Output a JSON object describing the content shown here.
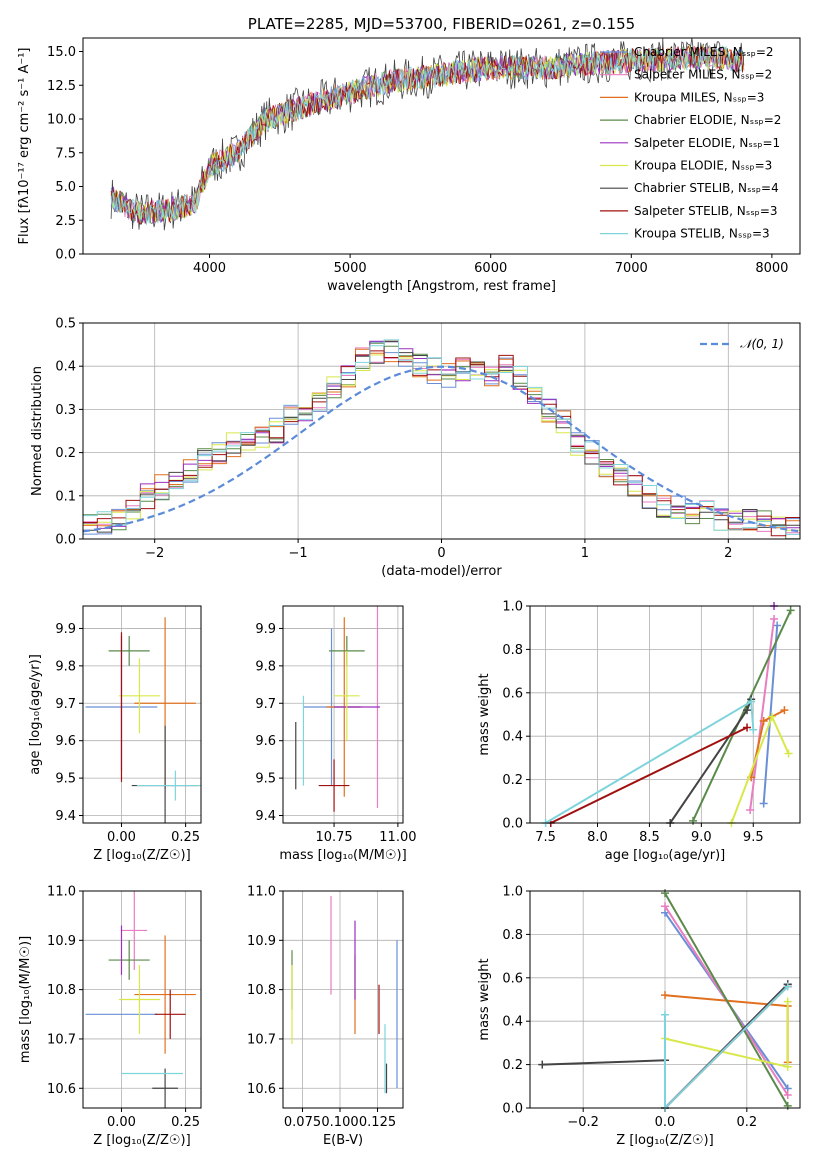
{
  "colors": [
    "#6a8fd6",
    "#e87dc0",
    "#e07020",
    "#5a8a4a",
    "#9b30c0",
    "#d8e84a",
    "#444444",
    "#a01010",
    "#7fd4dc"
  ],
  "chart_data": [
    {
      "id": "spectrum",
      "type": "line",
      "title": "PLATE=2285, MJD=53700, FIBERID=0261, z=0.155",
      "xlabel": "wavelength [Angstrom, rest frame]",
      "ylabel": "Flux [fλ10⁻¹⁷ erg cm⁻² s⁻¹ A⁻¹]",
      "xlim": [
        3100,
        8200
      ],
      "ylim": [
        0,
        16
      ],
      "xticks": [
        "4000",
        "5000",
        "6000",
        "7000",
        "8000"
      ],
      "yticks": [
        "0.0",
        "2.5",
        "5.0",
        "7.5",
        "10.0",
        "12.5",
        "15.0"
      ],
      "legend": [
        "Chabrier MILES, Nₛₛₚ=2",
        "Salpeter MILES, Nₛₛₚ=2",
        "Kroupa MILES, Nₛₛₚ=3",
        "Chabrier ELODIE, Nₛₛₚ=2",
        "Salpeter ELODIE, Nₛₛₚ=1",
        "Kroupa ELODIE, Nₛₛₚ=3",
        "Chabrier STELIB, Nₛₛₚ=4",
        "Salpeter STELIB, Nₛₛₚ=3",
        "Kroupa STELIB, Nₛₛₚ=3"
      ],
      "legend_position": "right",
      "trend": {
        "x": [
          3300,
          3500,
          3700,
          3900,
          4000,
          4200,
          4400,
          4700,
          5000,
          5300,
          5600,
          6000,
          6400,
          6800,
          7200,
          7600,
          7800
        ],
        "y": [
          4.2,
          3.0,
          3.2,
          3.8,
          6.5,
          7.5,
          10.0,
          11.0,
          12.0,
          12.8,
          13.2,
          13.8,
          13.8,
          14.2,
          14.4,
          14.6,
          14.2
        ]
      }
    },
    {
      "id": "residuals",
      "type": "histogram",
      "xlabel": "(data-model)/error",
      "ylabel": "Normed distribution",
      "xlim": [
        -2.5,
        2.5
      ],
      "ylim": [
        0,
        0.5
      ],
      "xticks": [
        "−2",
        "−1",
        "0",
        "1",
        "2"
      ],
      "yticks": [
        "0.0",
        "0.1",
        "0.2",
        "0.3",
        "0.4",
        "0.5"
      ],
      "gaussian_label": "𝒩(0, 1)",
      "legend_position": "top-right",
      "bin_centers": [
        -2.45,
        -2.35,
        -2.25,
        -2.15,
        -2.05,
        -1.95,
        -1.85,
        -1.75,
        -1.65,
        -1.55,
        -1.45,
        -1.35,
        -1.25,
        -1.15,
        -1.05,
        -0.95,
        -0.85,
        -0.75,
        -0.65,
        -0.55,
        -0.45,
        -0.35,
        -0.25,
        -0.15,
        -0.05,
        0.05,
        0.15,
        0.25,
        0.35,
        0.45,
        0.55,
        0.65,
        0.75,
        0.85,
        0.95,
        1.05,
        1.15,
        1.25,
        1.35,
        1.45,
        1.55,
        1.65,
        1.75,
        1.85,
        1.95,
        2.05,
        2.15,
        2.25,
        2.35,
        2.45
      ],
      "base_heights": [
        0.04,
        0.04,
        0.05,
        0.07,
        0.1,
        0.12,
        0.14,
        0.16,
        0.18,
        0.2,
        0.22,
        0.22,
        0.23,
        0.25,
        0.28,
        0.3,
        0.32,
        0.35,
        0.38,
        0.42,
        0.43,
        0.44,
        0.42,
        0.4,
        0.39,
        0.38,
        0.39,
        0.38,
        0.38,
        0.4,
        0.37,
        0.33,
        0.3,
        0.27,
        0.22,
        0.2,
        0.17,
        0.15,
        0.12,
        0.1,
        0.08,
        0.07,
        0.06,
        0.06,
        0.05,
        0.05,
        0.05,
        0.04,
        0.03,
        0.02
      ]
    },
    {
      "id": "age_vs_z",
      "type": "scatter",
      "xlabel": "Z [log₁₀(Z/Z☉)]",
      "ylabel": "age  [log₁₀(age/yr)]",
      "xlim": [
        -0.15,
        0.31
      ],
      "ylim": [
        9.38,
        9.96
      ],
      "xticks": [
        "0.00",
        "0.25"
      ],
      "xtick_values": [
        0.0,
        0.25
      ],
      "yticks": [
        "9.4",
        "9.5",
        "9.6",
        "9.7",
        "9.8",
        "9.9"
      ],
      "ytick_values": [
        9.4,
        9.5,
        9.6,
        9.7,
        9.8,
        9.9
      ],
      "points": [
        {
          "x": 0.0,
          "y": 9.69,
          "xe": 0.14,
          "ye": 0.0
        },
        {
          "x": 0.05,
          "y": 9.77,
          "xe": 0.0,
          "ye": 0.0
        },
        {
          "x": 0.17,
          "y": 9.7,
          "xe": 0.12,
          "ye": 0.23
        },
        {
          "x": 0.03,
          "y": 9.84,
          "xe": 0.08,
          "ye": 0.04
        },
        {
          "x": 0.0,
          "y": 9.7,
          "xe": 0.0,
          "ye": 0.18
        },
        {
          "x": 0.07,
          "y": 9.72,
          "xe": 0.08,
          "ye": 0.1
        },
        {
          "x": 0.17,
          "y": 9.48,
          "xe": 0.13,
          "ye": 0.16
        },
        {
          "x": 0.0,
          "y": 9.69,
          "xe": 0.0,
          "ye": 0.2
        },
        {
          "x": 0.21,
          "y": 9.48,
          "xe": 0.15,
          "ye": 0.04
        }
      ]
    },
    {
      "id": "age_vs_mass",
      "type": "scatter",
      "xlabel": "mass [log₁₀(M/M☉)]",
      "ylabel": "",
      "xlim": [
        10.55,
        11.02
      ],
      "ylim": [
        9.38,
        9.96
      ],
      "xticks": [
        "10.75",
        "11.00"
      ],
      "xtick_values": [
        10.75,
        11.0
      ],
      "yticks": [
        "9.4",
        "9.5",
        "9.6",
        "9.7",
        "9.8",
        "9.9"
      ],
      "ytick_values": [
        9.4,
        9.5,
        9.6,
        9.7,
        9.8,
        9.9
      ],
      "points": [
        {
          "x": 10.74,
          "y": 9.69,
          "xe": 0.11,
          "ye": 0.21
        },
        {
          "x": 10.92,
          "y": 9.77,
          "xe": 0.0,
          "ye": 0.35
        },
        {
          "x": 10.79,
          "y": 9.69,
          "xe": 0.07,
          "ye": 0.24
        },
        {
          "x": 10.8,
          "y": 9.84,
          "xe": 0.07,
          "ye": 0.04
        },
        {
          "x": 10.84,
          "y": 9.69,
          "xe": 0.09,
          "ye": 0.0
        },
        {
          "x": 10.8,
          "y": 9.72,
          "xe": 0.05,
          "ye": 0.12
        },
        {
          "x": 10.6,
          "y": 9.56,
          "xe": 0.0,
          "ye": 0.09
        },
        {
          "x": 10.75,
          "y": 9.48,
          "xe": 0.06,
          "ye": 0.07
        },
        {
          "x": 10.63,
          "y": 9.6,
          "xe": 0.0,
          "ye": 0.12
        }
      ]
    },
    {
      "id": "massw_vs_age",
      "type": "line",
      "xlabel": "age  [log₁₀(age/yr)]",
      "ylabel": "mass weight",
      "xlim": [
        7.35,
        9.95
      ],
      "ylim": [
        0,
        1.0
      ],
      "xticks": [
        "7.5",
        "8.0",
        "8.5",
        "9.0",
        "9.5"
      ],
      "xtick_values": [
        7.5,
        8.0,
        8.5,
        9.0,
        9.5
      ],
      "yticks": [
        "0.0",
        "0.2",
        "0.4",
        "0.6",
        "0.8",
        "1.0"
      ],
      "ytick_values": [
        0,
        0.2,
        0.4,
        0.6,
        0.8,
        1.0
      ],
      "series": [
        {
          "x": [
            9.6,
            9.73
          ],
          "y": [
            0.09,
            0.91
          ]
        },
        {
          "x": [
            9.47,
            9.7
          ],
          "y": [
            0.06,
            0.94
          ]
        },
        {
          "x": [
            9.48,
            9.6,
            9.8
          ],
          "y": [
            0.21,
            0.47,
            0.52
          ]
        },
        {
          "x": [
            8.92,
            9.86
          ],
          "y": [
            0.01,
            0.98
          ]
        },
        {
          "x": [
            9.7
          ],
          "y": [
            1.0
          ]
        },
        {
          "x": [
            9.29,
            9.68,
            9.84
          ],
          "y": [
            0.0,
            0.49,
            0.32
          ]
        },
        {
          "x": [
            8.7,
            9.44,
            9.48
          ],
          "y": [
            0.0,
            0.52,
            0.57
          ]
        },
        {
          "x": [
            7.55,
            9.44
          ],
          "y": [
            0.0,
            0.44
          ]
        },
        {
          "x": [
            7.5,
            9.48,
            9.5
          ],
          "y": [
            0.0,
            0.56,
            0.43
          ]
        }
      ]
    },
    {
      "id": "mass_vs_z",
      "type": "scatter",
      "xlabel": "Z [log₁₀(Z/Z☉)]",
      "ylabel": "mass [log₁₀(M/M☉)]",
      "xlim": [
        -0.15,
        0.31
      ],
      "ylim": [
        10.56,
        11.0
      ],
      "xticks": [
        "0.00",
        "0.25"
      ],
      "xtick_values": [
        0.0,
        0.25
      ],
      "yticks": [
        "10.6",
        "10.7",
        "10.8",
        "10.9",
        "11.0"
      ],
      "ytick_values": [
        10.6,
        10.7,
        10.8,
        10.9,
        11.0
      ],
      "points": [
        {
          "x": 0.0,
          "y": 10.75,
          "xe": 0.14,
          "ye": 0.0
        },
        {
          "x": 0.05,
          "y": 10.92,
          "xe": 0.05,
          "ye": 0.08
        },
        {
          "x": 0.17,
          "y": 10.79,
          "xe": 0.12,
          "ye": 0.12
        },
        {
          "x": 0.03,
          "y": 10.86,
          "xe": 0.08,
          "ye": 0.04
        },
        {
          "x": 0.0,
          "y": 10.88,
          "xe": 0.0,
          "ye": 0.05
        },
        {
          "x": 0.07,
          "y": 10.78,
          "xe": 0.08,
          "ye": 0.07
        },
        {
          "x": 0.17,
          "y": 10.6,
          "xe": 0.05,
          "ye": 0.04
        },
        {
          "x": 0.19,
          "y": 10.75,
          "xe": 0.06,
          "ye": 0.05
        },
        {
          "x": 0.12,
          "y": 10.63,
          "xe": 0.12,
          "ye": 0.0
        }
      ]
    },
    {
      "id": "mass_vs_ebv",
      "type": "scatter",
      "xlabel": "E(B-V)",
      "ylabel": "",
      "xlim": [
        0.062,
        0.142
      ],
      "ylim": [
        10.56,
        11.0
      ],
      "xticks": [
        "0.075",
        "0.100",
        "0.125"
      ],
      "xtick_values": [
        0.075,
        0.1,
        0.125
      ],
      "yticks": [
        "10.6",
        "10.7",
        "10.8",
        "10.9",
        "11.0"
      ],
      "ytick_values": [
        10.6,
        10.7,
        10.8,
        10.9,
        11.0
      ],
      "points": [
        {
          "x": 0.138,
          "y": 10.75,
          "xe": 0.0,
          "ye": 0.15
        },
        {
          "x": 0.094,
          "y": 10.89,
          "xe": 0.0,
          "ye": 0.1
        },
        {
          "x": 0.11,
          "y": 10.79,
          "xe": 0.0,
          "ye": 0.08
        },
        {
          "x": 0.068,
          "y": 10.82,
          "xe": 0.0,
          "ye": 0.06
        },
        {
          "x": 0.11,
          "y": 10.86,
          "xe": 0.0,
          "ye": 0.08
        },
        {
          "x": 0.068,
          "y": 10.77,
          "xe": 0.0,
          "ye": 0.08
        },
        {
          "x": 0.131,
          "y": 10.62,
          "xe": 0.0,
          "ye": 0.03
        },
        {
          "x": 0.126,
          "y": 10.76,
          "xe": 0.0,
          "ye": 0.05
        },
        {
          "x": 0.13,
          "y": 10.66,
          "xe": 0.0,
          "ye": 0.07
        }
      ]
    },
    {
      "id": "massw_vs_z",
      "type": "line",
      "xlabel": "Z [log₁₀(Z/Z☉)]",
      "ylabel": "mass weight",
      "xlim": [
        -0.33,
        0.33
      ],
      "ylim": [
        0,
        1.0
      ],
      "xticks": [
        "−0.2",
        "0.0",
        "0.2"
      ],
      "xtick_values": [
        -0.2,
        0.0,
        0.2
      ],
      "yticks": [
        "0.0",
        "0.2",
        "0.4",
        "0.6",
        "0.8",
        "1.0"
      ],
      "ytick_values": [
        0,
        0.2,
        0.4,
        0.6,
        0.8,
        1.0
      ],
      "series": [
        {
          "x": [
            0.0,
            0.3
          ],
          "y": [
            0.9,
            0.09
          ]
        },
        {
          "x": [
            0.0,
            0.3
          ],
          "y": [
            0.93,
            0.06
          ]
        },
        {
          "x": [
            0.0,
            0.3,
            0.3
          ],
          "y": [
            0.52,
            0.47,
            0.21
          ]
        },
        {
          "x": [
            0.0,
            0.3
          ],
          "y": [
            0.99,
            0.01
          ]
        },
        {
          "x": [
            0.0,
            0.3
          ],
          "y": [
            0.0,
            0.57
          ]
        },
        {
          "x": [
            0.0,
            0.3,
            0.3
          ],
          "y": [
            0.32,
            0.19,
            0.49
          ]
        },
        {
          "x": [
            -0.3,
            0.0,
            0.0,
            0.3
          ],
          "y": [
            0.2,
            0.22,
            0.0,
            0.57
          ]
        },
        {
          "x": [
            0.0,
            0.3
          ],
          "y": [
            0.0,
            0.56
          ]
        },
        {
          "x": [
            0.0,
            0.0,
            0.3
          ],
          "y": [
            0.43,
            0.0,
            0.56
          ]
        }
      ]
    }
  ]
}
